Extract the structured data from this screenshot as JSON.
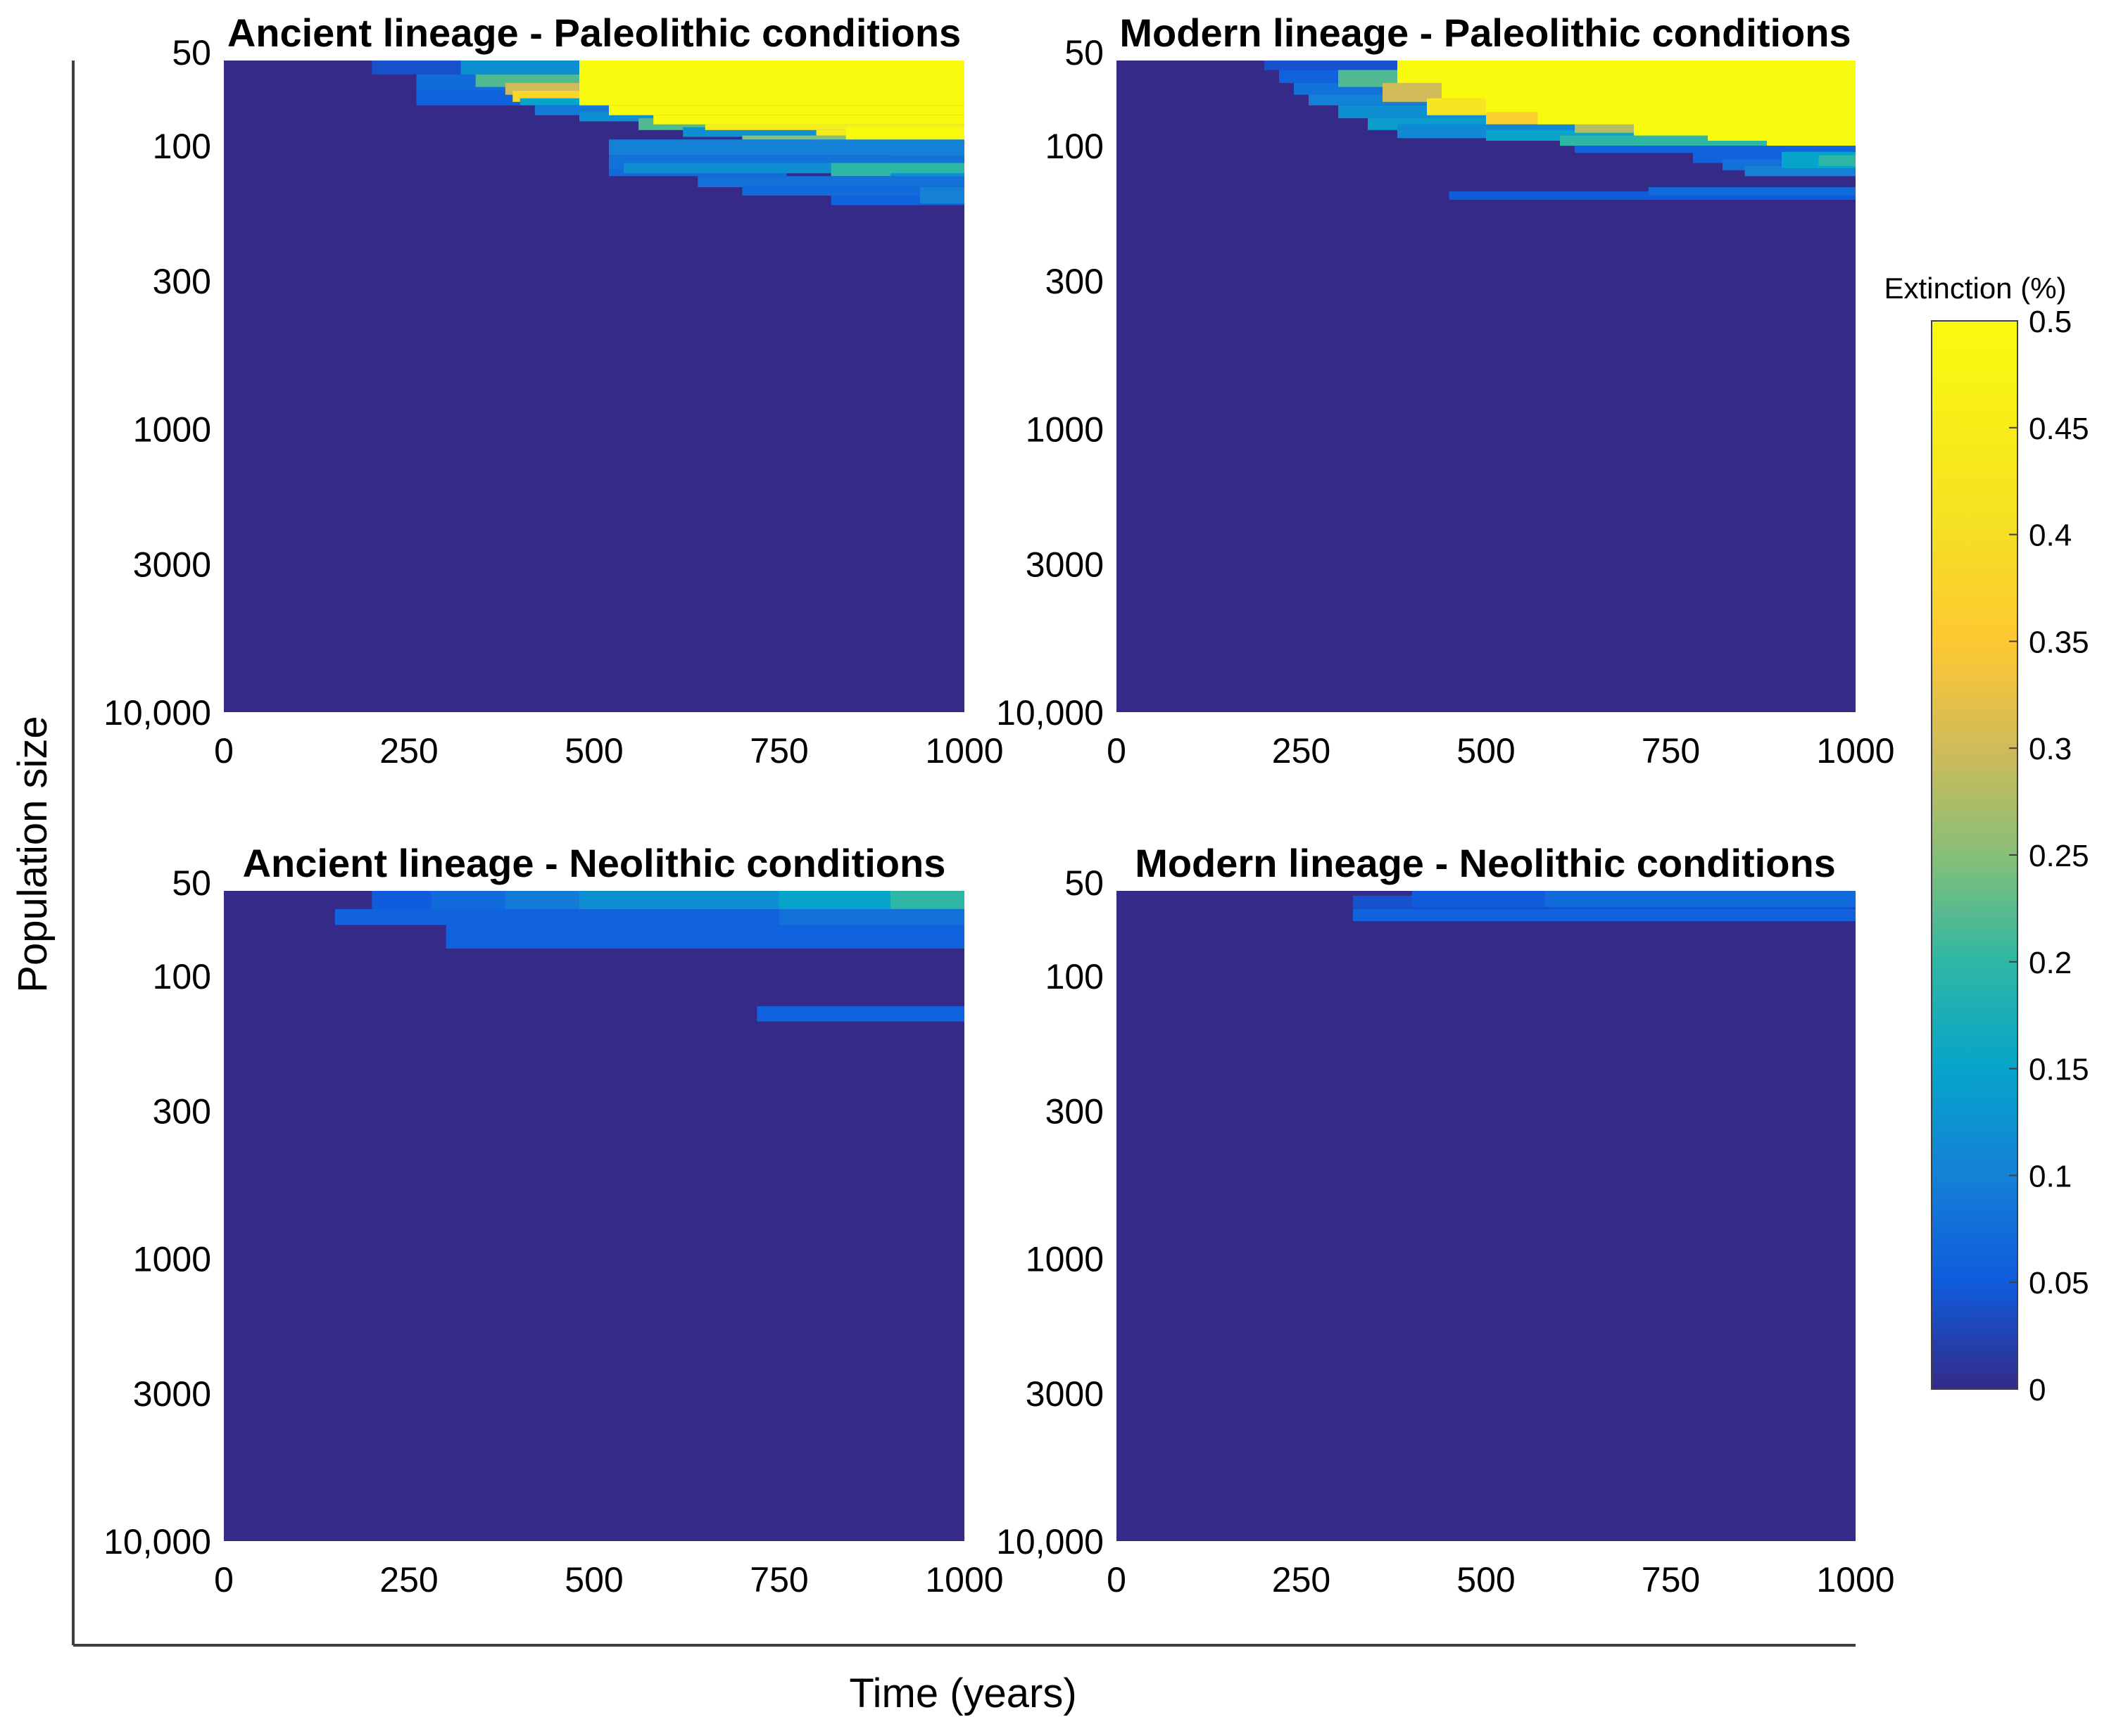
{
  "chart_data": {
    "type": "heatmap",
    "xlabel": "Time (years)",
    "ylabel": "Population size",
    "x_ticks": [
      "0",
      "250",
      "500",
      "750",
      "1000"
    ],
    "y_ticks": [
      "50",
      "100",
      "300",
      "1000",
      "3000",
      "10,000"
    ],
    "xlim": [
      0,
      1000
    ],
    "ylim": [
      50,
      10000
    ],
    "y_scale": "log",
    "colorbar": {
      "title": "Extinction (%)",
      "range": [
        0,
        0.5
      ],
      "ticks": [
        "0.5",
        "0.45",
        "0.4",
        "0.35",
        "0.3",
        "0.25",
        "0.2",
        "0.15",
        "0.1",
        "0.05",
        "0"
      ],
      "colormap": "parula"
    },
    "background_value": 0.0,
    "panels": [
      {
        "title": "Ancient lineage - Paleolithic conditions",
        "cells": [
          {
            "t0": 200,
            "t1": 1000,
            "p0": 50,
            "p1": 56,
            "v": 0.04
          },
          {
            "t0": 260,
            "t1": 1000,
            "p0": 56,
            "p1": 64,
            "v": 0.07
          },
          {
            "t0": 260,
            "t1": 400,
            "p0": 64,
            "p1": 72,
            "v": 0.06
          },
          {
            "t0": 320,
            "t1": 1000,
            "p0": 50,
            "p1": 56,
            "v": 0.12
          },
          {
            "t0": 340,
            "t1": 1000,
            "p0": 56,
            "p1": 62,
            "v": 0.22
          },
          {
            "t0": 380,
            "t1": 1000,
            "p0": 60,
            "p1": 66,
            "v": 0.3
          },
          {
            "t0": 390,
            "t1": 1000,
            "p0": 64,
            "p1": 70,
            "v": 0.38
          },
          {
            "t0": 400,
            "t1": 1000,
            "p0": 68,
            "p1": 72,
            "v": 0.15
          },
          {
            "t0": 420,
            "t1": 1000,
            "p0": 72,
            "p1": 78,
            "v": 0.09
          },
          {
            "t0": 480,
            "t1": 1000,
            "p0": 76,
            "p1": 82,
            "v": 0.12
          },
          {
            "t0": 560,
            "t1": 1000,
            "p0": 80,
            "p1": 88,
            "v": 0.22
          },
          {
            "t0": 620,
            "t1": 1000,
            "p0": 86,
            "p1": 93,
            "v": 0.12
          },
          {
            "t0": 700,
            "t1": 1000,
            "p0": 92,
            "p1": 100,
            "v": 0.25
          },
          {
            "t0": 820,
            "t1": 1000,
            "p0": 99,
            "p1": 108,
            "v": 0.3
          },
          {
            "t0": 900,
            "t1": 1000,
            "p0": 106,
            "p1": 115,
            "v": 0.22
          },
          {
            "t0": 520,
            "t1": 1000,
            "p0": 95,
            "p1": 108,
            "v": 0.1
          },
          {
            "t0": 520,
            "t1": 1000,
            "p0": 108,
            "p1": 125,
            "v": 0.08
          },
          {
            "t0": 520,
            "t1": 760,
            "p0": 120,
            "p1": 128,
            "v": 0.07
          },
          {
            "t0": 540,
            "t1": 1000,
            "p0": 115,
            "p1": 125,
            "v": 0.12
          },
          {
            "t0": 820,
            "t1": 1000,
            "p0": 115,
            "p1": 128,
            "v": 0.2
          },
          {
            "t0": 900,
            "t1": 1000,
            "p0": 125,
            "p1": 140,
            "v": 0.12
          },
          {
            "t0": 640,
            "t1": 1000,
            "p0": 128,
            "p1": 140,
            "v": 0.08
          },
          {
            "t0": 700,
            "t1": 1000,
            "p0": 138,
            "p1": 150,
            "v": 0.07
          },
          {
            "t0": 820,
            "t1": 1000,
            "p0": 150,
            "p1": 162,
            "v": 0.06
          },
          {
            "t0": 940,
            "t1": 1000,
            "p0": 140,
            "p1": 160,
            "v": 0.1
          },
          {
            "t0": 480,
            "t1": 1000,
            "p0": 50,
            "p1": 72,
            "v": 0.5
          },
          {
            "t0": 520,
            "t1": 1000,
            "p0": 72,
            "p1": 78,
            "v": 0.5
          },
          {
            "t0": 580,
            "t1": 1000,
            "p0": 78,
            "p1": 84,
            "v": 0.5
          },
          {
            "t0": 650,
            "t1": 1000,
            "p0": 84,
            "p1": 88,
            "v": 0.45
          },
          {
            "t0": 800,
            "t1": 1000,
            "p0": 88,
            "p1": 92,
            "v": 0.44
          },
          {
            "t0": 840,
            "t1": 1000,
            "p0": 86,
            "p1": 95,
            "v": 0.5
          }
        ]
      },
      {
        "title": "Modern lineage - Paleolithic conditions",
        "cells": [
          {
            "t0": 200,
            "t1": 1000,
            "p0": 50,
            "p1": 54,
            "v": 0.04
          },
          {
            "t0": 220,
            "t1": 1000,
            "p0": 54,
            "p1": 60,
            "v": 0.06
          },
          {
            "t0": 240,
            "t1": 1000,
            "p0": 60,
            "p1": 66,
            "v": 0.08
          },
          {
            "t0": 260,
            "t1": 1000,
            "p0": 66,
            "p1": 72,
            "v": 0.1
          },
          {
            "t0": 300,
            "t1": 1000,
            "p0": 72,
            "p1": 80,
            "v": 0.12
          },
          {
            "t0": 340,
            "t1": 1000,
            "p0": 80,
            "p1": 88,
            "v": 0.14
          },
          {
            "t0": 380,
            "t1": 1000,
            "p0": 84,
            "p1": 94,
            "v": 0.11
          },
          {
            "t0": 500,
            "t1": 1000,
            "p0": 88,
            "p1": 96,
            "v": 0.15
          },
          {
            "t0": 600,
            "t1": 1000,
            "p0": 92,
            "p1": 100,
            "v": 0.2
          },
          {
            "t0": 300,
            "t1": 1000,
            "p0": 54,
            "p1": 62,
            "v": 0.22
          },
          {
            "t0": 360,
            "t1": 1000,
            "p0": 60,
            "p1": 70,
            "v": 0.3
          },
          {
            "t0": 420,
            "t1": 1000,
            "p0": 68,
            "p1": 78,
            "v": 0.42
          },
          {
            "t0": 500,
            "t1": 1000,
            "p0": 74,
            "p1": 84,
            "v": 0.36
          },
          {
            "t0": 620,
            "t1": 1000,
            "p0": 80,
            "p1": 90,
            "v": 0.28
          },
          {
            "t0": 380,
            "t1": 1000,
            "p0": 50,
            "p1": 60,
            "v": 0.5
          },
          {
            "t0": 440,
            "t1": 1000,
            "p0": 58,
            "p1": 68,
            "v": 0.5
          },
          {
            "t0": 500,
            "t1": 1000,
            "p0": 66,
            "p1": 76,
            "v": 0.5
          },
          {
            "t0": 570,
            "t1": 1000,
            "p0": 74,
            "p1": 84,
            "v": 0.5
          },
          {
            "t0": 700,
            "t1": 1000,
            "p0": 82,
            "p1": 92,
            "v": 0.5
          },
          {
            "t0": 800,
            "t1": 1000,
            "p0": 90,
            "p1": 96,
            "v": 0.5
          },
          {
            "t0": 880,
            "t1": 1000,
            "p0": 96,
            "p1": 100,
            "v": 0.5
          },
          {
            "t0": 620,
            "t1": 1000,
            "p0": 100,
            "p1": 106,
            "v": 0.06
          },
          {
            "t0": 780,
            "t1": 1000,
            "p0": 104,
            "p1": 115,
            "v": 0.06
          },
          {
            "t0": 820,
            "t1": 1000,
            "p0": 112,
            "p1": 122,
            "v": 0.08
          },
          {
            "t0": 850,
            "t1": 1000,
            "p0": 118,
            "p1": 128,
            "v": 0.1
          },
          {
            "t0": 900,
            "t1": 1000,
            "p0": 105,
            "p1": 120,
            "v": 0.15
          },
          {
            "t0": 950,
            "t1": 1000,
            "p0": 108,
            "p1": 118,
            "v": 0.2
          },
          {
            "t0": 450,
            "t1": 1000,
            "p0": 145,
            "p1": 155,
            "v": 0.05
          },
          {
            "t0": 720,
            "t1": 1000,
            "p0": 140,
            "p1": 150,
            "v": 0.07
          }
        ]
      },
      {
        "title": "Ancient lineage - Neolithic conditions",
        "cells": [
          {
            "t0": 200,
            "t1": 1000,
            "p0": 50,
            "p1": 58,
            "v": 0.05
          },
          {
            "t0": 280,
            "t1": 1000,
            "p0": 50,
            "p1": 58,
            "v": 0.07
          },
          {
            "t0": 380,
            "t1": 1000,
            "p0": 50,
            "p1": 58,
            "v": 0.09
          },
          {
            "t0": 480,
            "t1": 1000,
            "p0": 50,
            "p1": 58,
            "v": 0.12
          },
          {
            "t0": 750,
            "t1": 1000,
            "p0": 50,
            "p1": 58,
            "v": 0.15
          },
          {
            "t0": 900,
            "t1": 1000,
            "p0": 50,
            "p1": 58,
            "v": 0.2
          },
          {
            "t0": 150,
            "t1": 1000,
            "p0": 58,
            "p1": 66,
            "v": 0.06
          },
          {
            "t0": 300,
            "t1": 1000,
            "p0": 66,
            "p1": 80,
            "v": 0.06
          },
          {
            "t0": 750,
            "t1": 1000,
            "p0": 58,
            "p1": 66,
            "v": 0.08
          },
          {
            "t0": 720,
            "t1": 1000,
            "p0": 128,
            "p1": 145,
            "v": 0.06
          }
        ]
      },
      {
        "title": "Modern lineage - Neolithic conditions",
        "cells": [
          {
            "t0": 320,
            "t1": 1000,
            "p0": 52,
            "p1": 58,
            "v": 0.04
          },
          {
            "t0": 400,
            "t1": 1000,
            "p0": 50,
            "p1": 57,
            "v": 0.05
          },
          {
            "t0": 580,
            "t1": 1000,
            "p0": 50,
            "p1": 57,
            "v": 0.07
          },
          {
            "t0": 320,
            "t1": 1000,
            "p0": 58,
            "p1": 64,
            "v": 0.06
          }
        ]
      }
    ]
  }
}
